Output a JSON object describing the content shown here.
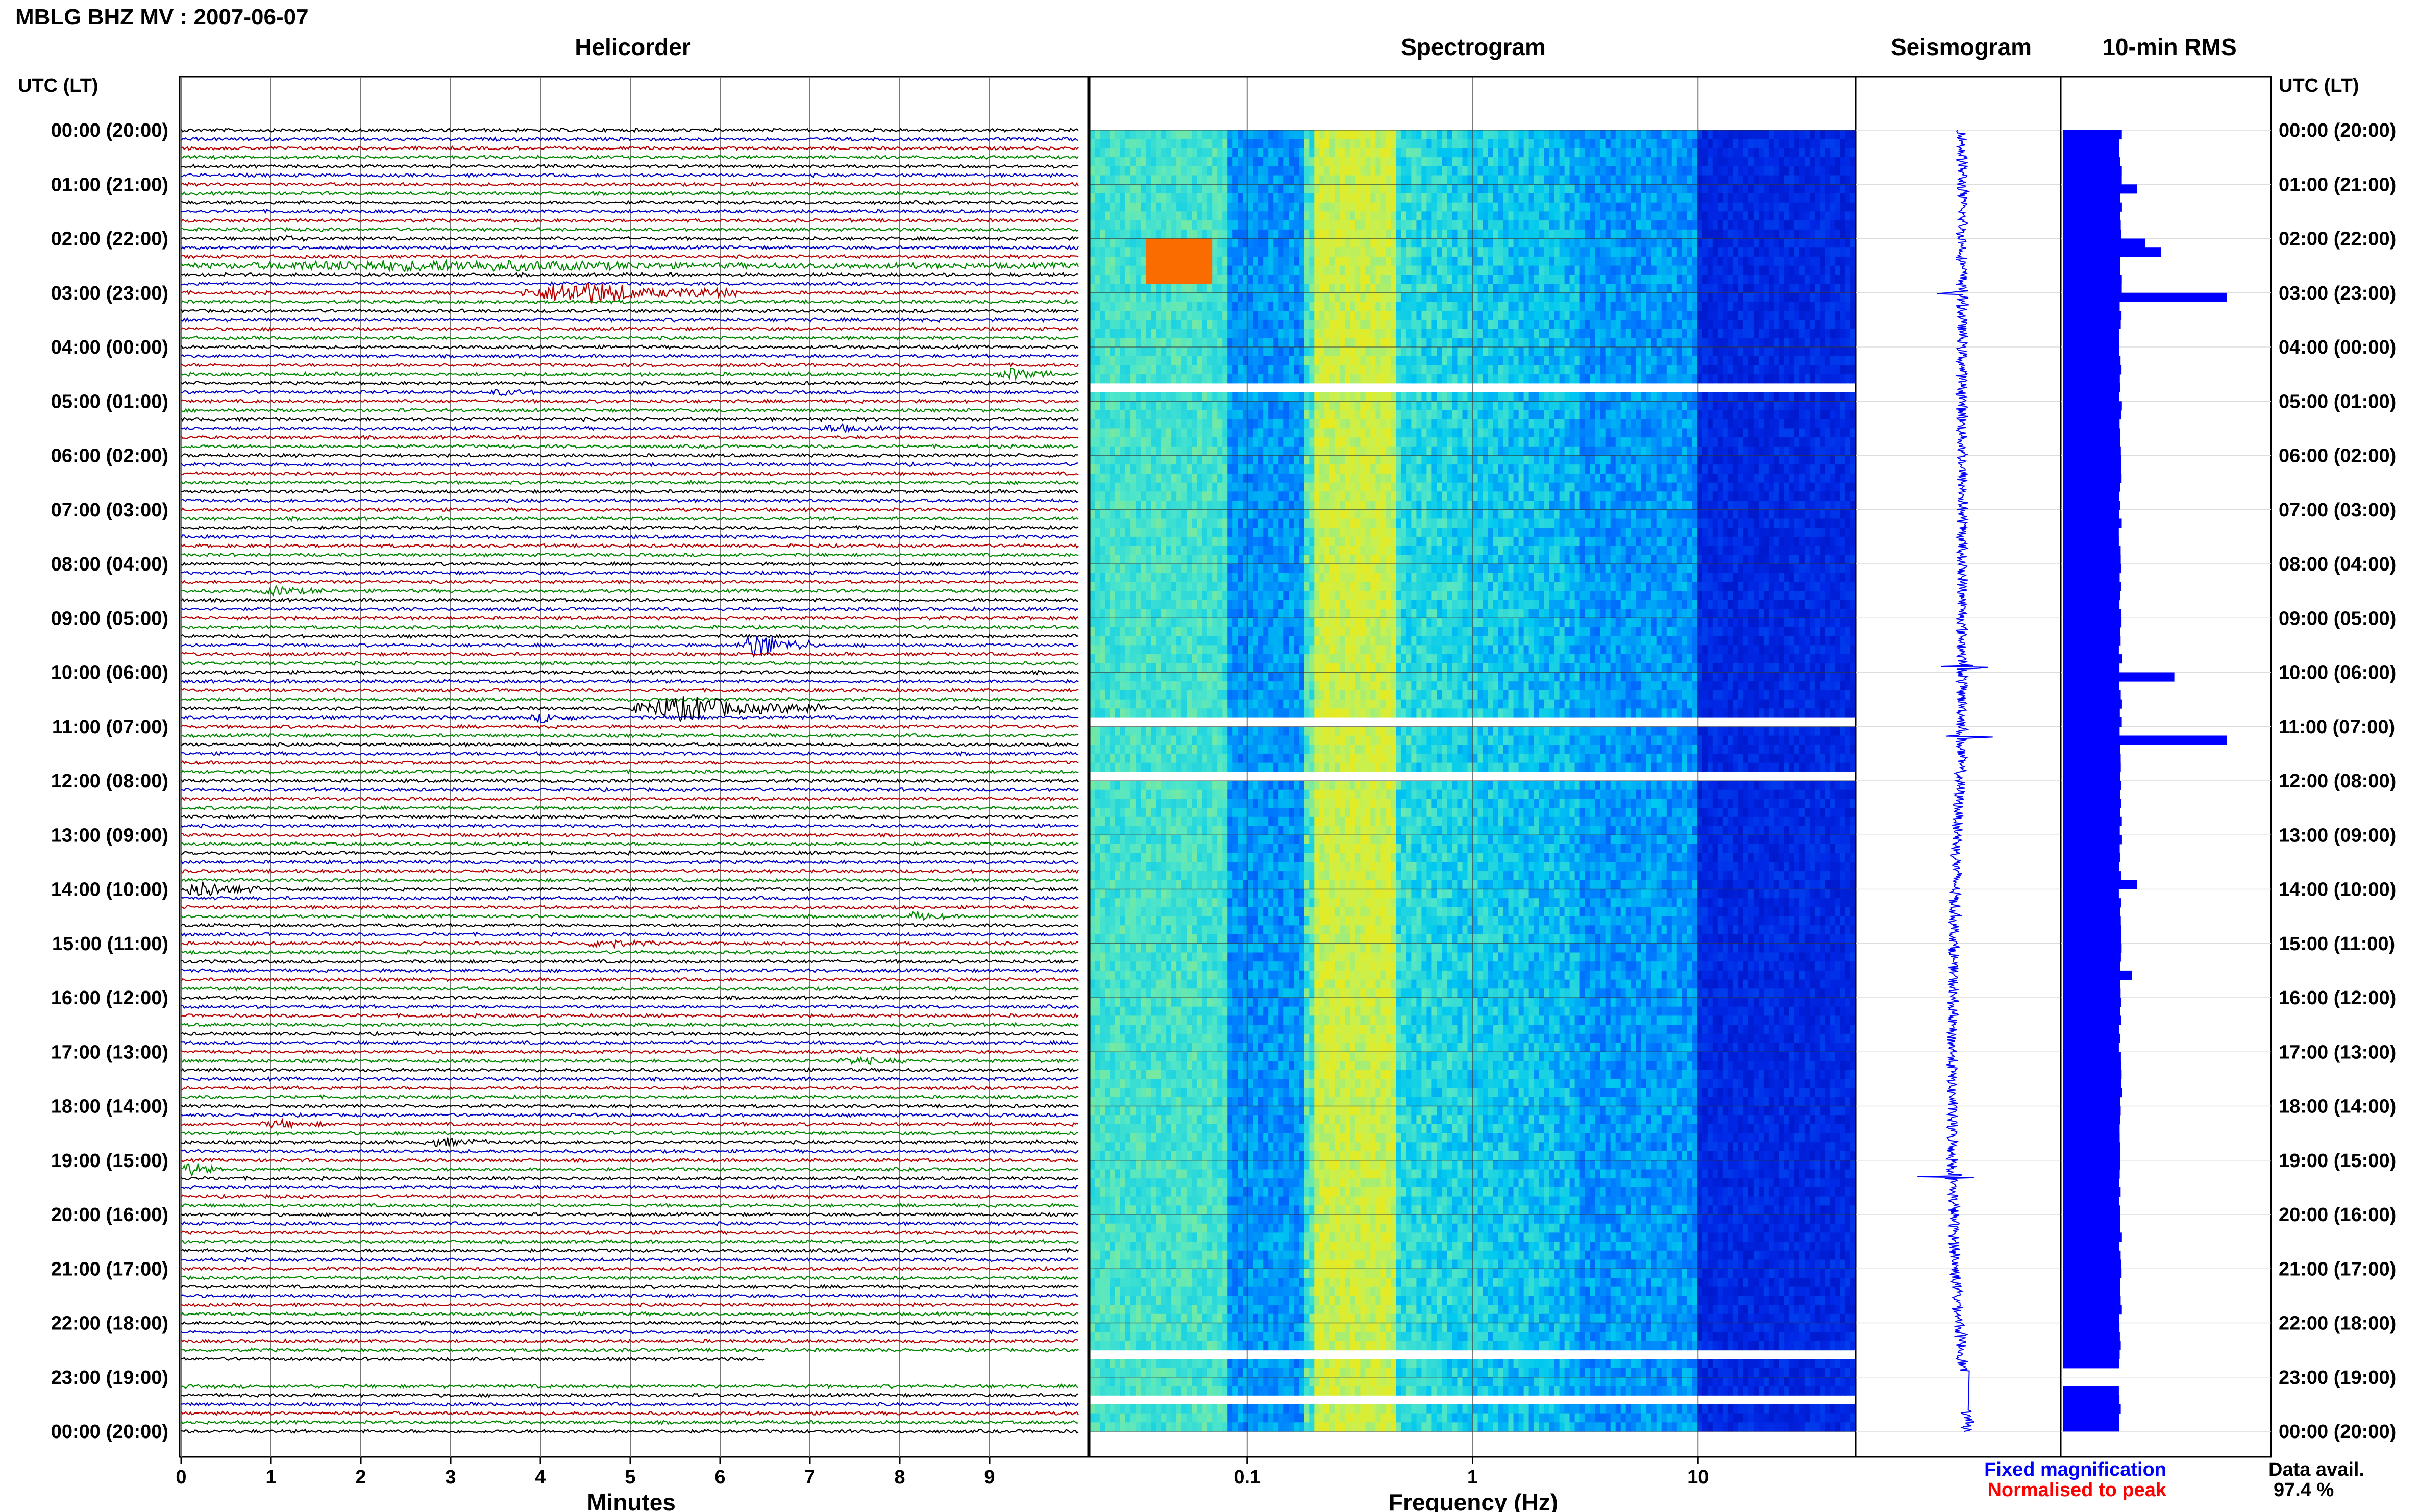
{
  "header": {
    "title": "MBLG BHZ MV : 2007-06-07"
  },
  "panels": {
    "helicorder": "Helicorder",
    "spectrogram": "Spectrogram",
    "seismogram": "Seismogram",
    "rms": "10-min RMS"
  },
  "axes": {
    "time_label_left": "UTC (LT)",
    "time_label_right": "UTC (LT)",
    "helicorder_xlabel": "Minutes",
    "spectrogram_xlabel": "Frequency (Hz)"
  },
  "footer": {
    "legend_fixed": "Fixed magnification",
    "legend_normalised": "Normalised to peak",
    "data_avail_label": "Data avail.",
    "data_avail_value": "97.4 %"
  },
  "colors": {
    "trace_cycle": [
      "#000000",
      "#0000cc",
      "#bb0000",
      "#008800"
    ],
    "seismogram": "#0000ff",
    "rms": "#0000ff",
    "legend_fixed": "#0000ff",
    "legend_normalised": "#ff0000"
  },
  "chart_data": [
    {
      "type": "line",
      "name": "helicorder",
      "xlabel": "Minutes",
      "x_ticks": [
        "0",
        "1",
        "2",
        "3",
        "4",
        "5",
        "6",
        "7",
        "8",
        "9"
      ],
      "xlim": [
        0,
        10
      ],
      "y_ticks": [
        "00:00 (20:00)",
        "01:00 (21:00)",
        "02:00 (22:00)",
        "03:00 (23:00)",
        "04:00 (00:00)",
        "05:00 (01:00)",
        "06:00 (02:00)",
        "07:00 (03:00)",
        "08:00 (04:00)",
        "09:00 (05:00)",
        "10:00 (06:00)",
        "11:00 (07:00)",
        "12:00 (08:00)",
        "13:00 (09:00)",
        "14:00 (10:00)",
        "15:00 (11:00)",
        "16:00 (12:00)",
        "17:00 (13:00)",
        "18:00 (14:00)",
        "19:00 (15:00)",
        "20:00 (16:00)",
        "21:00 (17:00)",
        "22:00 (18:00)",
        "23:00 (19:00)",
        "00:00 (20:00)"
      ],
      "traces_per_hour": 6,
      "total_traces": 144,
      "events": [
        {
          "trace": 12,
          "start_min": 1.0,
          "end_min": 1.5,
          "amp": 0.6
        },
        {
          "trace": 15,
          "start_min": 0.0,
          "end_min": 10.0,
          "amp": 1.2
        },
        {
          "trace": 18,
          "start_min": 3.8,
          "end_min": 6.2,
          "amp": 2.8
        },
        {
          "trace": 27,
          "start_min": 9.1,
          "end_min": 9.7,
          "amp": 1.3
        },
        {
          "trace": 29,
          "start_min": 3.4,
          "end_min": 4.1,
          "amp": 0.6
        },
        {
          "trace": 33,
          "start_min": 7.1,
          "end_min": 7.8,
          "amp": 0.9
        },
        {
          "trace": 51,
          "start_min": 0.9,
          "end_min": 1.6,
          "amp": 1.1
        },
        {
          "trace": 57,
          "start_min": 6.2,
          "end_min": 7.0,
          "amp": 3.5
        },
        {
          "trace": 64,
          "start_min": 5.0,
          "end_min": 7.2,
          "amp": 3.2
        },
        {
          "trace": 65,
          "start_min": 3.9,
          "end_min": 4.4,
          "amp": 1.1
        },
        {
          "trace": 84,
          "start_min": 0.0,
          "end_min": 0.9,
          "amp": 2.0
        },
        {
          "trace": 87,
          "start_min": 8.1,
          "end_min": 8.5,
          "amp": 1.1
        },
        {
          "trace": 90,
          "start_min": 4.5,
          "end_min": 5.3,
          "amp": 1.1
        },
        {
          "trace": 103,
          "start_min": 7.3,
          "end_min": 8.1,
          "amp": 0.8
        },
        {
          "trace": 110,
          "start_min": 0.9,
          "end_min": 1.6,
          "amp": 0.9
        },
        {
          "trace": 112,
          "start_min": 2.7,
          "end_min": 3.4,
          "amp": 1.0
        },
        {
          "trace": 115,
          "start_min": 0.0,
          "end_min": 0.4,
          "amp": 1.8
        }
      ],
      "gaps": [
        {
          "trace": 136,
          "start_min": 6.5,
          "end_min": 10.0
        },
        {
          "trace": 137,
          "start_min": 0.0,
          "end_min": 10.0
        },
        {
          "trace": 138,
          "start_min": 0.0,
          "end_min": 10.0
        }
      ]
    },
    {
      "type": "heatmap",
      "name": "spectrogram",
      "xlabel": "Frequency (Hz)",
      "x_scale": "log",
      "x_ticks": [
        "0.1",
        "1",
        "10"
      ],
      "xlim": [
        0.02,
        50
      ],
      "peak_band_hz": [
        0.2,
        0.45
      ],
      "gap_hours": [
        4.6,
        10.85,
        11.9,
        22.5,
        23.4
      ]
    },
    {
      "type": "line",
      "name": "seismogram",
      "spikes": [
        {
          "hour": 3.0,
          "amp": 0.55
        },
        {
          "hour": 9.9,
          "amp": 0.45
        },
        {
          "hour": 11.2,
          "amp": 0.6
        },
        {
          "hour": 19.3,
          "amp": 0.45
        }
      ]
    },
    {
      "type": "bar",
      "name": "10-min RMS",
      "legend": [
        "Fixed magnification",
        "Normalised to peak"
      ],
      "bars_per_hour": 6,
      "baseline": 0.35,
      "peaks": [
        {
          "index": 6,
          "value": 0.45
        },
        {
          "index": 12,
          "value": 0.5
        },
        {
          "index": 13,
          "value": 0.6
        },
        {
          "index": 18,
          "value": 1.0
        },
        {
          "index": 60,
          "value": 0.68
        },
        {
          "index": 67,
          "value": 1.0
        },
        {
          "index": 83,
          "value": 0.45
        },
        {
          "index": 93,
          "value": 0.42
        }
      ],
      "gap_indices": [
        137,
        138
      ]
    }
  ]
}
